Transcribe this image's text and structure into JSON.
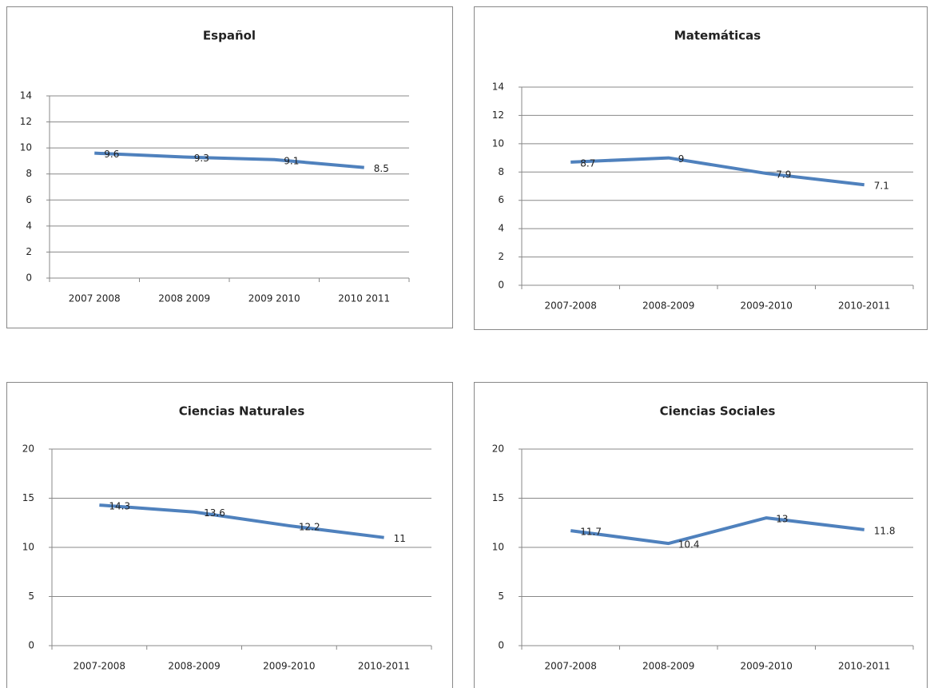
{
  "chart_data": [
    {
      "type": "line",
      "title": "Español",
      "categories": [
        "2007 2008",
        "2008 2009",
        "2009 2010",
        "2010 2011"
      ],
      "values": [
        9.6,
        9.3,
        9.1,
        8.5
      ],
      "color": "#4f81bd",
      "ylim": [
        0,
        14
      ],
      "yticks": [
        0,
        2,
        4,
        6,
        8,
        10,
        12,
        14
      ],
      "grid": true
    },
    {
      "type": "line",
      "title": "Matemáticas",
      "categories": [
        "2007-2008",
        "2008-2009",
        "2009-2010",
        "2010-2011"
      ],
      "values": [
        8.7,
        9,
        7.9,
        7.1
      ],
      "color": "#4f81bd",
      "ylim": [
        0,
        14
      ],
      "yticks": [
        0,
        2,
        4,
        6,
        8,
        10,
        12,
        14
      ],
      "grid": true
    },
    {
      "type": "line",
      "title": "Ciencias Naturales",
      "categories": [
        "2007-2008",
        "2008-2009",
        "2009-2010",
        "2010-2011"
      ],
      "values": [
        14.3,
        13.6,
        12.2,
        11
      ],
      "color": "#4f81bd",
      "ylim": [
        0,
        20
      ],
      "yticks": [
        0,
        5,
        10,
        15,
        20
      ],
      "grid": true
    },
    {
      "type": "line",
      "title": "Ciencias Sociales",
      "categories": [
        "2007-2008",
        "2008-2009",
        "2009-2010",
        "2010-2011"
      ],
      "values": [
        11.7,
        10.4,
        13,
        11.8
      ],
      "color": "#4f81bd",
      "ylim": [
        0,
        20
      ],
      "yticks": [
        0,
        5,
        10,
        15,
        20
      ],
      "grid": true
    }
  ]
}
